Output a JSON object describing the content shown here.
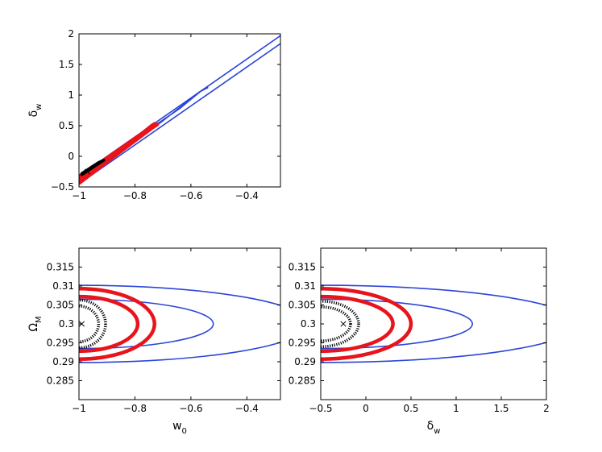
{
  "chart_data": [
    {
      "type": "contour",
      "panel": "top-left",
      "xlim": [
        -1,
        -0.28
      ],
      "ylim": [
        -0.5,
        2
      ],
      "xticks": [
        -1,
        -0.8,
        -0.6,
        -0.4
      ],
      "xtick_labels": [
        "−1",
        "−0.8",
        "−0.6",
        "−0.4"
      ],
      "yticks": [
        -0.5,
        0,
        0.5,
        1,
        1.5,
        2
      ],
      "ytick_labels": [
        "−0.5",
        "0",
        "0.5",
        "1",
        "1.5",
        "2"
      ],
      "xlabel": "",
      "ylabel": {
        "base": "δ",
        "sub": "w"
      },
      "grid": false,
      "series": [
        {
          "color": "#2b45d8",
          "style": "solid",
          "lines": [
            [
              [
                -1,
                -0.32
              ],
              [
                -0.28,
                1.97
              ]
            ],
            [
              [
                -1,
                -0.45
              ],
              [
                -0.28,
                1.84
              ]
            ],
            [
              [
                -1,
                -0.35
              ],
              [
                -0.82,
                0.22
              ],
              [
                -0.64,
                0.78
              ],
              [
                -0.56,
                1.08
              ],
              [
                -0.54,
                1.12
              ],
              [
                -0.57,
                1.05
              ],
              [
                -0.7,
                0.58
              ],
              [
                -0.86,
                0.05
              ],
              [
                -1,
                -0.4
              ]
            ]
          ]
        },
        {
          "color": "#e8141c",
          "style": "thick",
          "lines": [
            [
              [
                -1,
                -0.35
              ],
              [
                -0.86,
                0.1
              ],
              [
                -0.76,
                0.42
              ],
              [
                -0.73,
                0.53
              ],
              [
                -0.74,
                0.5
              ],
              [
                -0.8,
                0.28
              ],
              [
                -0.9,
                -0.03
              ],
              [
                -1,
                -0.33
              ]
            ],
            [
              [
                -1,
                -0.44
              ],
              [
                -0.88,
                -0.02
              ],
              [
                -0.74,
                0.46
              ],
              [
                -0.72,
                0.52
              ],
              [
                -0.75,
                0.44
              ],
              [
                -0.87,
                0.04
              ],
              [
                -0.96,
                -0.24
              ],
              [
                -1,
                -0.42
              ]
            ]
          ]
        },
        {
          "color": "#000000",
          "style": "dotted",
          "lines": [
            [
              [
                -0.99,
                -0.3
              ],
              [
                -0.93,
                -0.12
              ],
              [
                -0.91,
                -0.06
              ],
              [
                -0.93,
                -0.1
              ],
              [
                -0.97,
                -0.22
              ],
              [
                -0.99,
                -0.28
              ]
            ]
          ]
        }
      ],
      "marker": {
        "symbol": "x",
        "x": -0.97,
        "y": -0.25
      }
    },
    {
      "type": "contour",
      "panel": "bottom-left",
      "xlim": [
        -1,
        -0.28
      ],
      "ylim": [
        0.28,
        0.32
      ],
      "xticks": [
        -1,
        -0.8,
        -0.6,
        -0.4
      ],
      "xtick_labels": [
        "−1",
        "−0.8",
        "−0.6",
        "−0.4"
      ],
      "yticks": [
        0.285,
        0.29,
        0.295,
        0.3,
        0.305,
        0.31,
        0.315
      ],
      "ytick_labels": [
        "0.285",
        "0.29",
        "0.295",
        "0.3",
        "0.305",
        "0.31",
        "0.315"
      ],
      "xlabel": {
        "base": "w",
        "sub": "0"
      },
      "ylabel": {
        "base": "Ω",
        "sub": "M"
      },
      "grid": false,
      "ellipses": [
        {
          "color": "#2b45d8",
          "style": "solid",
          "cx": -1,
          "cy": 0.3,
          "rx": 0.48,
          "ry": 0.0065
        },
        {
          "color": "#2b45d8",
          "style": "solid",
          "cx": -1,
          "cy": 0.3,
          "rx": 0.82,
          "ry": 0.0102
        },
        {
          "color": "#e8141c",
          "style": "thick",
          "cx": -1,
          "cy": 0.3,
          "rx": 0.27,
          "ry": 0.0093
        },
        {
          "color": "#e8141c",
          "style": "thick",
          "cx": -1,
          "cy": 0.3,
          "rx": 0.21,
          "ry": 0.0072
        },
        {
          "color": "#000000",
          "style": "dotted",
          "cx": -1,
          "cy": 0.3,
          "rx": 0.095,
          "ry": 0.0063
        },
        {
          "color": "#000000",
          "style": "dotted",
          "cx": -1,
          "cy": 0.3,
          "rx": 0.07,
          "ry": 0.0047
        }
      ],
      "marker": {
        "symbol": "x",
        "x": -0.99,
        "y": 0.3
      }
    },
    {
      "type": "contour",
      "panel": "bottom-right",
      "xlim": [
        -0.5,
        2
      ],
      "ylim": [
        0.28,
        0.32
      ],
      "xticks": [
        -0.5,
        0,
        0.5,
        1,
        1.5,
        2
      ],
      "xtick_labels": [
        "−0.5",
        "0",
        "0.5",
        "1",
        "1.5",
        "2"
      ],
      "yticks": [
        0.285,
        0.29,
        0.295,
        0.3,
        0.305,
        0.31,
        0.315
      ],
      "ytick_labels": [
        "0.285",
        "0.29",
        "0.295",
        "0.3",
        "0.305",
        "0.31",
        "0.315"
      ],
      "xlabel": {
        "base": "δ",
        "sub": "w"
      },
      "ylabel": "",
      "grid": false,
      "ellipses": [
        {
          "color": "#2b45d8",
          "style": "solid",
          "cx": -0.5,
          "cy": 0.3,
          "rx": 1.68,
          "ry": 0.0065
        },
        {
          "color": "#2b45d8",
          "style": "solid",
          "cx": -0.5,
          "cy": 0.3,
          "rx": 2.85,
          "ry": 0.0102
        },
        {
          "color": "#e8141c",
          "style": "thick",
          "cx": -0.5,
          "cy": 0.3,
          "rx": 1.0,
          "ry": 0.0093
        },
        {
          "color": "#e8141c",
          "style": "thick",
          "cx": -0.5,
          "cy": 0.3,
          "rx": 0.8,
          "ry": 0.0072
        },
        {
          "color": "#000000",
          "style": "dotted",
          "cx": -0.5,
          "cy": 0.3,
          "rx": 0.42,
          "ry": 0.006
        },
        {
          "color": "#000000",
          "style": "dotted",
          "cx": -0.5,
          "cy": 0.3,
          "rx": 0.33,
          "ry": 0.0045
        }
      ],
      "marker": {
        "symbol": "x",
        "x": -0.25,
        "y": 0.3
      }
    }
  ]
}
